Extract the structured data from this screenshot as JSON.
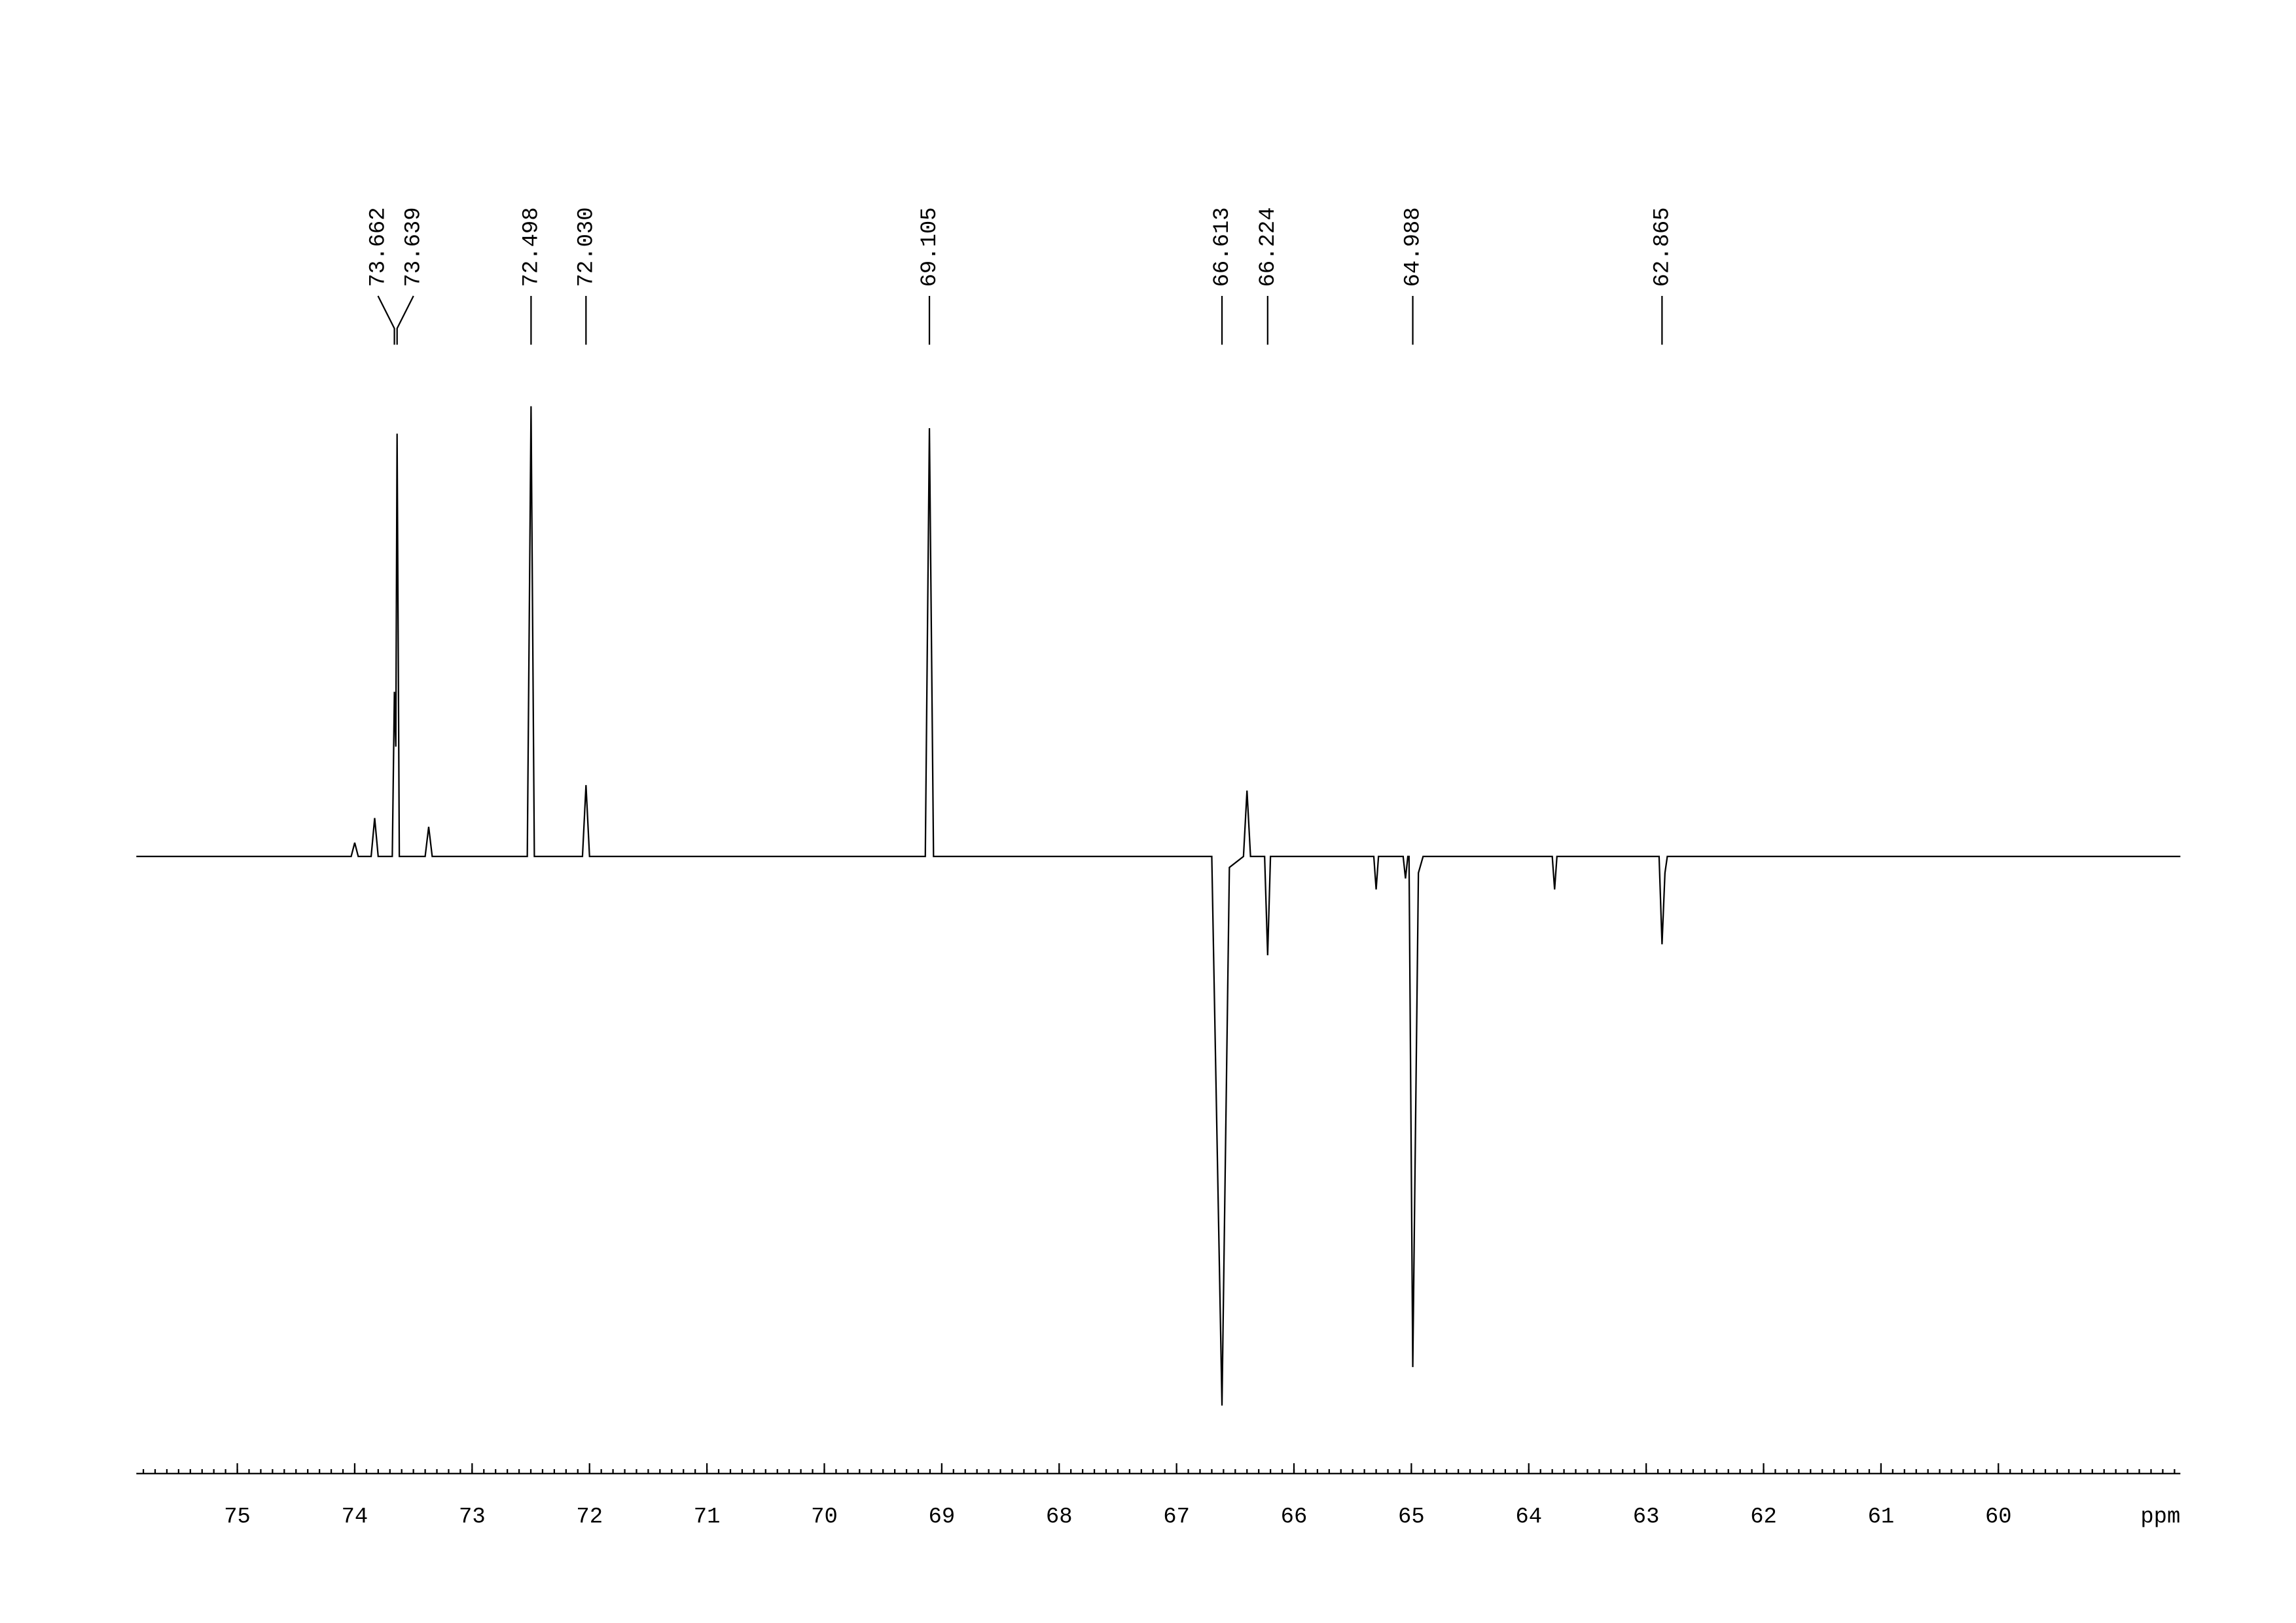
{
  "chart_data": {
    "type": "spectrum",
    "x_label": "ppm",
    "xlim": [
      75.86,
      58.45
    ],
    "xticks": [
      75,
      74,
      73,
      72,
      71,
      70,
      69,
      68,
      67,
      66,
      65,
      64,
      63,
      62,
      61,
      60
    ],
    "minor_xtick_step": 0.1,
    "ylim": [
      -100,
      80
    ],
    "color": "#000000",
    "peaks": [
      73.662,
      73.639,
      72.498,
      72.03,
      69.105,
      66.613,
      66.224,
      64.988,
      62.865
    ],
    "peak_labels": [
      "73.662",
      "73.639",
      "72.498",
      "72.030",
      "69.105",
      "66.613",
      "66.224",
      "64.988",
      "62.865"
    ],
    "x": [
      75.86,
      74.03,
      74.0,
      73.97,
      73.86,
      73.83,
      73.8,
      73.68,
      73.662,
      73.65,
      73.639,
      73.62,
      73.4,
      73.37,
      73.34,
      72.53,
      72.498,
      72.47,
      72.06,
      72.03,
      72.0,
      69.14,
      69.105,
      69.07,
      66.7,
      66.613,
      66.55,
      66.43,
      66.4,
      66.37,
      66.25,
      66.224,
      66.2,
      65.32,
      65.3,
      65.28,
      65.07,
      65.05,
      65.03,
      65.02,
      64.988,
      64.94,
      64.9,
      63.8,
      63.78,
      63.76,
      62.89,
      62.865,
      62.84,
      62.82,
      58.45
    ],
    "y": [
      0,
      0,
      2.5,
      0,
      0,
      7,
      0,
      0,
      30,
      20,
      77,
      0,
      0,
      5.4,
      0,
      0,
      82,
      0,
      0,
      13,
      0,
      0,
      78,
      0,
      0,
      -100,
      -2,
      0,
      12,
      0,
      0,
      -18,
      0,
      0,
      -6,
      0,
      0,
      -4,
      0,
      0,
      -93,
      -3,
      0,
      0,
      -6,
      0,
      0,
      -16,
      -3,
      0,
      0
    ]
  }
}
